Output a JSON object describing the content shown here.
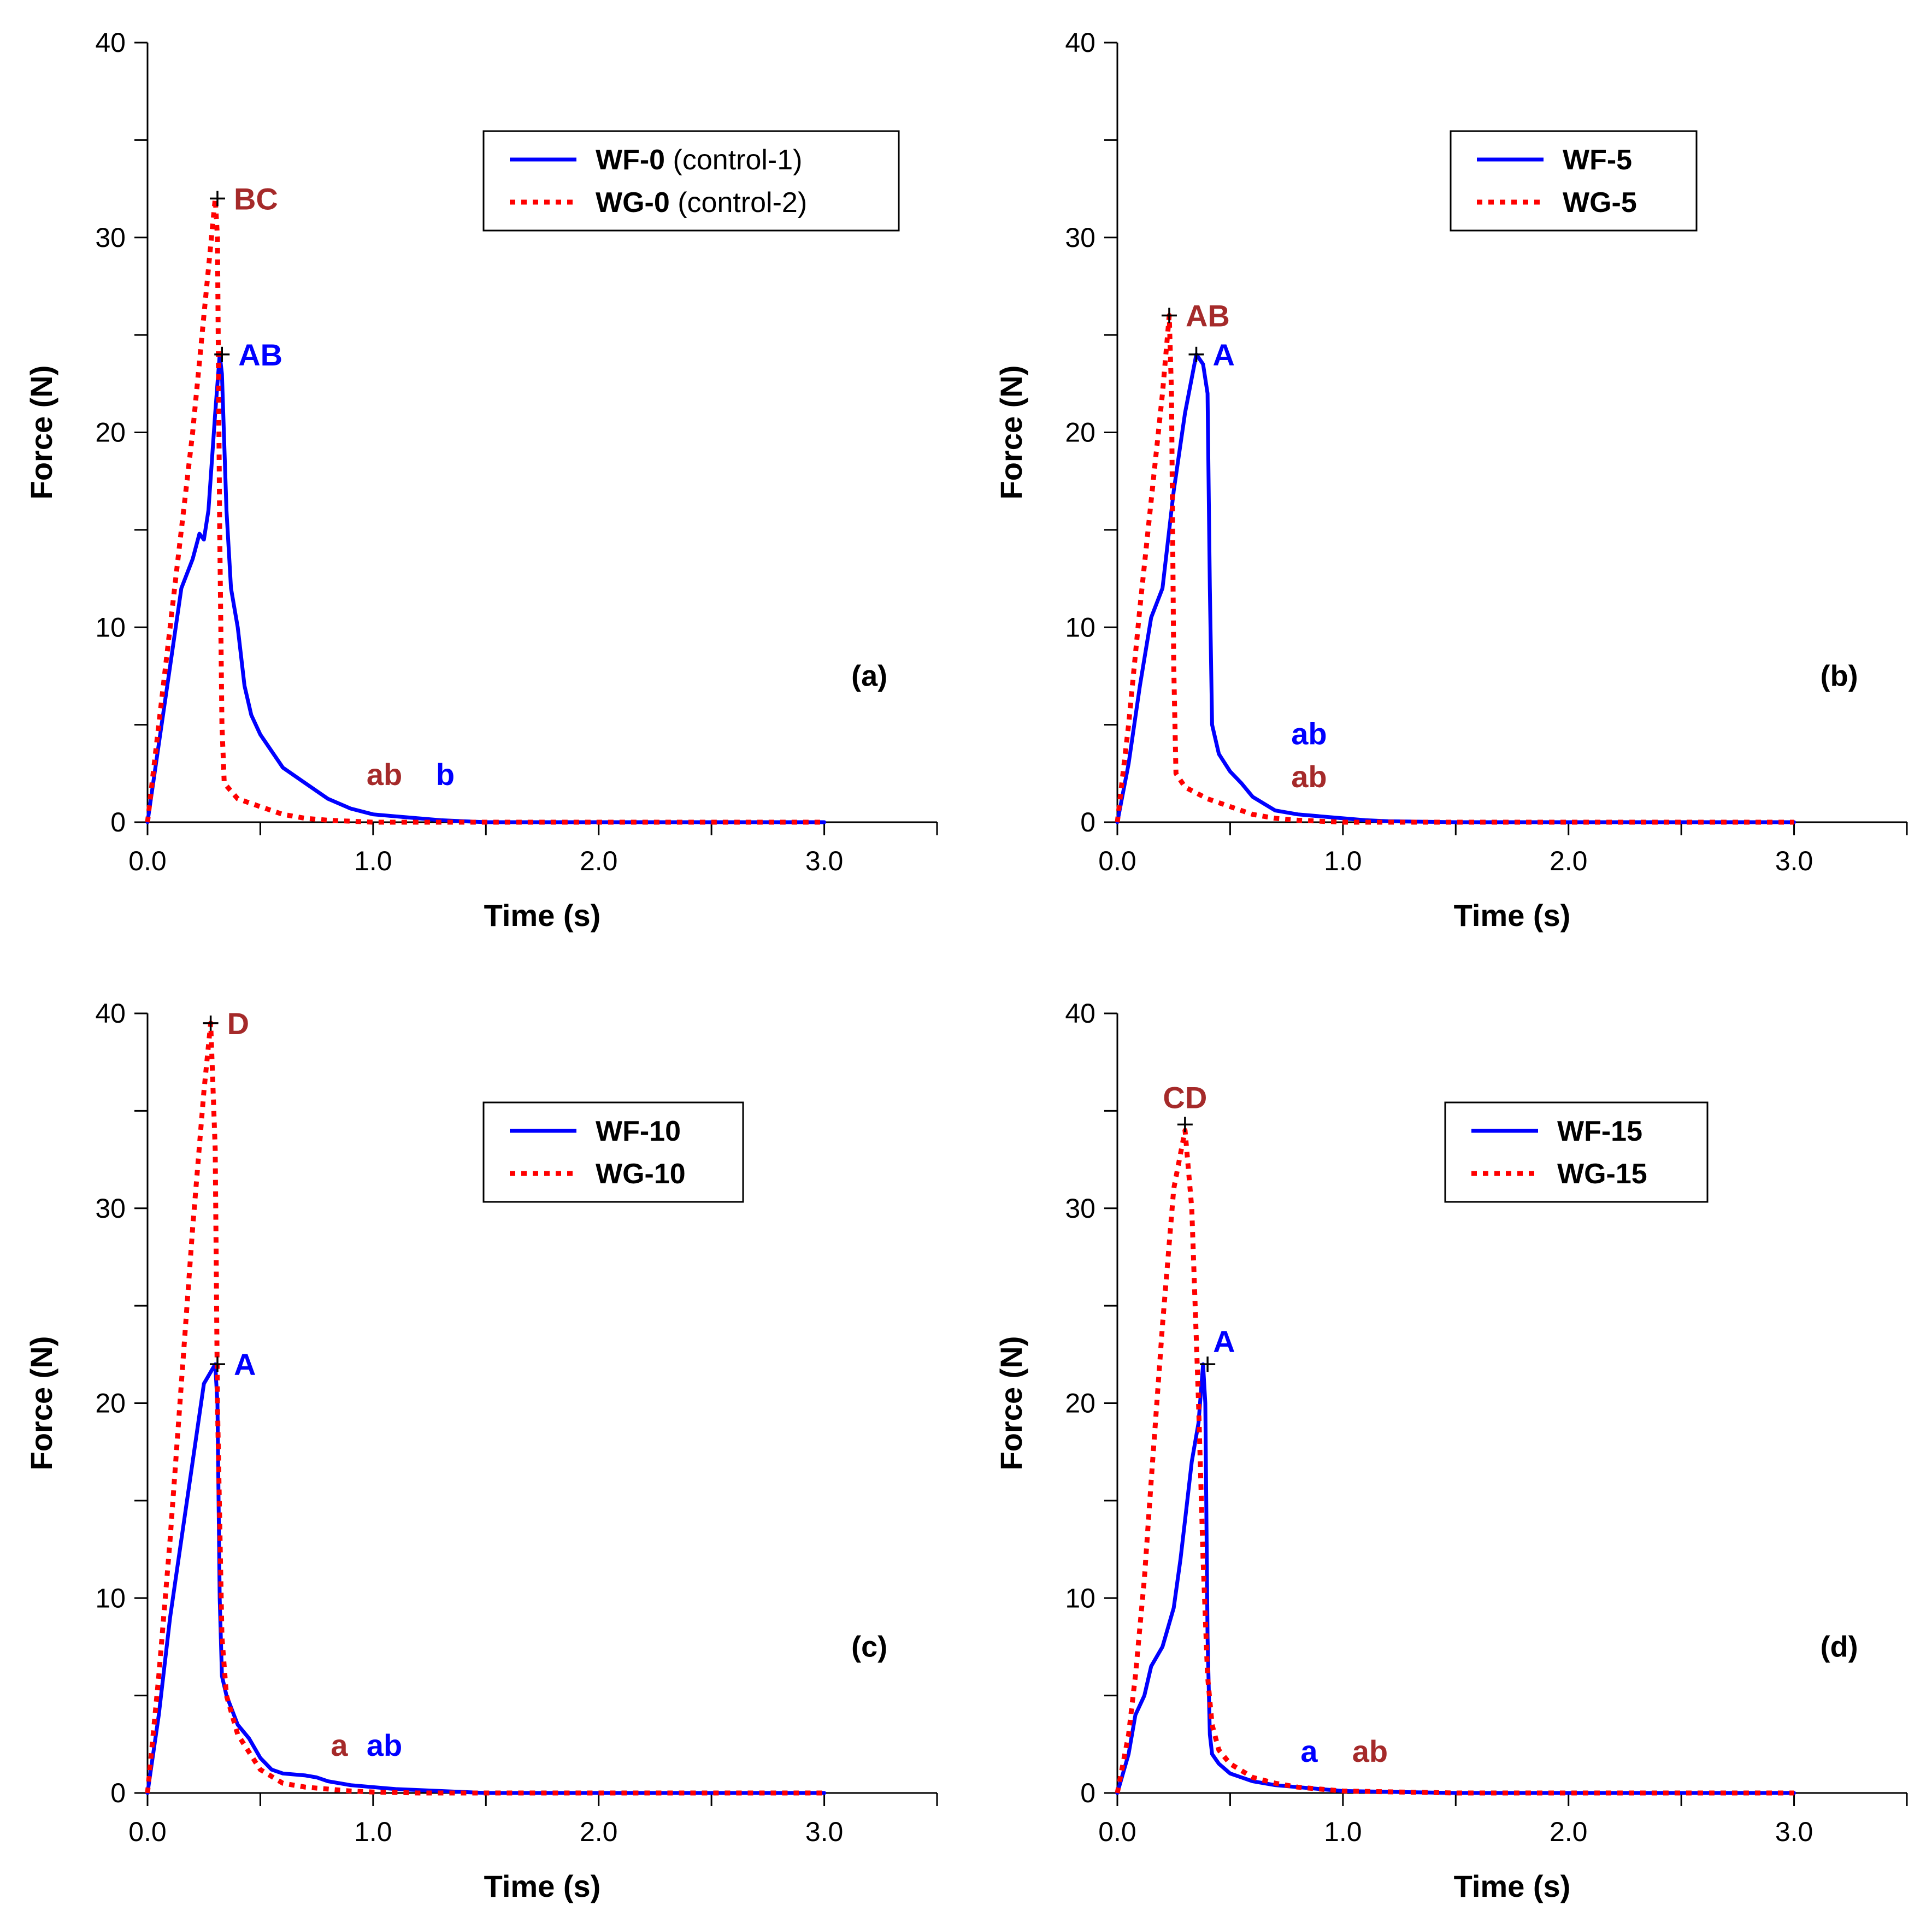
{
  "colors": {
    "wf": "#0000ff",
    "wg": "#ff0000",
    "wg_annot": "#a52a2a",
    "wf_annot": "#0000ff"
  },
  "chart_data": [
    {
      "type": "line",
      "panel_label": "(a)",
      "xlabel": "Time (s)",
      "ylabel": "Force (N)",
      "xlim": [
        0,
        3.5
      ],
      "ylim": [
        0,
        40
      ],
      "xticks": [
        "0.0",
        "1.0",
        "2.0",
        "3.0"
      ],
      "yticks": [
        "0",
        "10",
        "20",
        "30",
        "40"
      ],
      "legend": [
        {
          "bold": "WF-0",
          "rest": " (control-1)",
          "style": "solid"
        },
        {
          "bold": "WG-0",
          "rest": " (control-2)",
          "style": "dotted"
        }
      ],
      "series": [
        {
          "name": "WF-0 (control-1)",
          "style": "solid",
          "x": [
            0,
            0.05,
            0.1,
            0.15,
            0.2,
            0.23,
            0.25,
            0.27,
            0.3,
            0.32,
            0.33,
            0.35,
            0.37,
            0.4,
            0.43,
            0.46,
            0.5,
            0.6,
            0.7,
            0.8,
            0.9,
            1.0,
            1.1,
            1.2,
            1.3,
            1.4,
            1.5,
            2.0,
            2.5,
            3.0
          ],
          "y": [
            0,
            4,
            8,
            12,
            13.5,
            14.8,
            14.5,
            16,
            21,
            24,
            23,
            16,
            12,
            10,
            7,
            5.5,
            4.5,
            2.8,
            2.0,
            1.2,
            0.7,
            0.4,
            0.3,
            0.2,
            0.1,
            0.05,
            0,
            0,
            0,
            0
          ]
        },
        {
          "name": "WG-0 (control-2)",
          "style": "dotted",
          "x": [
            0,
            0.05,
            0.1,
            0.15,
            0.2,
            0.25,
            0.3,
            0.31,
            0.32,
            0.33,
            0.34,
            0.4,
            0.5,
            0.6,
            0.7,
            0.8,
            0.9,
            1.0,
            1.2,
            1.5,
            2.0,
            2.5,
            3.0
          ],
          "y": [
            0,
            5,
            10,
            15,
            20,
            26,
            32,
            30,
            15,
            5,
            2,
            1.2,
            0.8,
            0.4,
            0.2,
            0.1,
            0.05,
            0,
            0,
            0,
            0,
            0,
            0
          ]
        }
      ],
      "peaks": [
        {
          "series": 1,
          "x": 0.31,
          "y": 32,
          "label": "BC"
        },
        {
          "series": 0,
          "x": 0.33,
          "y": 24,
          "label": "AB"
        }
      ],
      "annotations": [
        {
          "series": 1,
          "x": 1.05,
          "y": 1.9,
          "label": "ab"
        },
        {
          "series": 0,
          "x": 1.32,
          "y": 1.9,
          "label": "b"
        }
      ]
    },
    {
      "type": "line",
      "panel_label": "(b)",
      "xlabel": "Time (s)",
      "ylabel": "Force (N)",
      "xlim": [
        0,
        3.5
      ],
      "ylim": [
        0,
        40
      ],
      "xticks": [
        "0.0",
        "1.0",
        "2.0",
        "3.0"
      ],
      "yticks": [
        "0",
        "10",
        "20",
        "30",
        "40"
      ],
      "legend": [
        {
          "bold": "WF-5",
          "rest": "",
          "style": "solid"
        },
        {
          "bold": "WG-5",
          "rest": "",
          "style": "dotted"
        }
      ],
      "series": [
        {
          "name": "WF-5",
          "style": "solid",
          "x": [
            0,
            0.05,
            0.1,
            0.15,
            0.2,
            0.25,
            0.3,
            0.35,
            0.38,
            0.4,
            0.41,
            0.42,
            0.45,
            0.5,
            0.55,
            0.6,
            0.7,
            0.8,
            0.9,
            1.0,
            1.1,
            1.2,
            1.5,
            2.0,
            2.5,
            3.0
          ],
          "y": [
            0,
            3,
            7,
            10.5,
            12,
            17,
            21,
            24,
            23.5,
            22,
            12,
            5,
            3.5,
            2.6,
            2.0,
            1.3,
            0.6,
            0.4,
            0.3,
            0.2,
            0.1,
            0.05,
            0,
            0,
            0,
            0
          ]
        },
        {
          "name": "WG-5",
          "style": "dotted",
          "x": [
            0,
            0.05,
            0.1,
            0.15,
            0.2,
            0.23,
            0.24,
            0.25,
            0.26,
            0.3,
            0.4,
            0.5,
            0.6,
            0.7,
            0.8,
            0.9,
            1.0,
            1.2,
            1.5,
            2.0,
            2.5,
            3.0
          ],
          "y": [
            0,
            5,
            11,
            16.5,
            22,
            26,
            22,
            8,
            2.5,
            1.8,
            1.2,
            0.8,
            0.4,
            0.2,
            0.1,
            0.05,
            0,
            0,
            0,
            0,
            0,
            0
          ]
        }
      ],
      "peaks": [
        {
          "series": 1,
          "x": 0.23,
          "y": 26,
          "label": "AB"
        },
        {
          "series": 0,
          "x": 0.35,
          "y": 24,
          "label": "A"
        }
      ],
      "annotations": [
        {
          "series": 0,
          "x": 0.85,
          "y": 4,
          "label": "ab"
        },
        {
          "series": 1,
          "x": 0.85,
          "y": 1.8,
          "label": "ab"
        }
      ]
    },
    {
      "type": "line",
      "panel_label": "(c)",
      "xlabel": "Time (s)",
      "ylabel": "Force (N)",
      "xlim": [
        0,
        3.5
      ],
      "ylim": [
        0,
        40
      ],
      "xticks": [
        "0.0",
        "1.0",
        "2.0",
        "3.0"
      ],
      "yticks": [
        "0",
        "10",
        "20",
        "30",
        "40"
      ],
      "legend": [
        {
          "bold": "WF-10",
          "rest": "",
          "style": "solid"
        },
        {
          "bold": "WG-10",
          "rest": "",
          "style": "dotted"
        }
      ],
      "series": [
        {
          "name": "WF-10",
          "style": "solid",
          "x": [
            0,
            0.05,
            0.1,
            0.15,
            0.2,
            0.25,
            0.3,
            0.31,
            0.32,
            0.33,
            0.35,
            0.4,
            0.45,
            0.5,
            0.55,
            0.6,
            0.7,
            0.75,
            0.8,
            0.9,
            1.0,
            1.1,
            1.2,
            1.5,
            2.0,
            2.5,
            3.0
          ],
          "y": [
            0,
            4,
            9,
            13,
            17,
            21,
            22,
            20,
            10,
            6,
            5,
            3.5,
            2.8,
            1.8,
            1.2,
            1.0,
            0.9,
            0.8,
            0.6,
            0.4,
            0.3,
            0.2,
            0.15,
            0,
            0,
            0,
            0
          ]
        },
        {
          "name": "WG-10",
          "style": "dotted",
          "x": [
            0,
            0.05,
            0.1,
            0.15,
            0.2,
            0.25,
            0.28,
            0.3,
            0.31,
            0.33,
            0.35,
            0.4,
            0.5,
            0.6,
            0.7,
            0.8,
            0.9,
            1.0,
            1.2,
            1.5,
            2.0,
            2.5,
            3.0
          ],
          "y": [
            0,
            6,
            13,
            21,
            29,
            36,
            39.5,
            33,
            20,
            8,
            5,
            3,
            1.2,
            0.5,
            0.3,
            0.2,
            0.1,
            0.05,
            0,
            0,
            0,
            0,
            0
          ]
        }
      ],
      "peaks": [
        {
          "series": 1,
          "x": 0.28,
          "y": 39.5,
          "label": "D"
        },
        {
          "series": 0,
          "x": 0.31,
          "y": 22,
          "label": "A"
        }
      ],
      "annotations": [
        {
          "series": 1,
          "x": 0.85,
          "y": 1.9,
          "label": "a"
        },
        {
          "series": 0,
          "x": 1.05,
          "y": 1.9,
          "label": "ab"
        }
      ]
    },
    {
      "type": "line",
      "panel_label": "(d)",
      "xlabel": "Time (s)",
      "ylabel": "Force (N)",
      "xlim": [
        0,
        3.5
      ],
      "ylim": [
        0,
        40
      ],
      "xticks": [
        "0.0",
        "1.0",
        "2.0",
        "3.0"
      ],
      "yticks": [
        "0",
        "10",
        "20",
        "30",
        "40"
      ],
      "legend": [
        {
          "bold": "WF-15",
          "rest": "",
          "style": "solid"
        },
        {
          "bold": "WG-15",
          "rest": "",
          "style": "dotted"
        }
      ],
      "series": [
        {
          "name": "WF-15",
          "style": "solid",
          "x": [
            0,
            0.05,
            0.08,
            0.12,
            0.15,
            0.2,
            0.25,
            0.28,
            0.3,
            0.33,
            0.36,
            0.38,
            0.39,
            0.4,
            0.41,
            0.42,
            0.45,
            0.5,
            0.55,
            0.6,
            0.7,
            0.8,
            0.9,
            1.0,
            1.5,
            2.0,
            2.5,
            3.0
          ],
          "y": [
            0,
            2,
            4,
            5,
            6.5,
            7.5,
            9.5,
            12,
            14,
            17,
            19,
            22,
            20,
            8,
            3,
            2,
            1.5,
            1.0,
            0.8,
            0.6,
            0.4,
            0.3,
            0.2,
            0.1,
            0,
            0,
            0,
            0
          ]
        },
        {
          "name": "WG-15",
          "style": "dotted",
          "x": [
            0,
            0.05,
            0.08,
            0.12,
            0.15,
            0.2,
            0.25,
            0.3,
            0.33,
            0.36,
            0.38,
            0.4,
            0.42,
            0.45,
            0.5,
            0.6,
            0.7,
            0.8,
            0.9,
            1.0,
            1.5,
            2.0,
            2.5,
            3.0
          ],
          "y": [
            0,
            3,
            6,
            11,
            16,
            24,
            31,
            34,
            30,
            20,
            12,
            6,
            3.5,
            2.2,
            1.5,
            0.8,
            0.5,
            0.3,
            0.2,
            0.1,
            0,
            0,
            0,
            0
          ]
        }
      ],
      "peaks": [
        {
          "series": 1,
          "x": 0.3,
          "y": 34.3,
          "label": "CD"
        },
        {
          "series": 0,
          "x": 0.4,
          "y": 22,
          "label": "A"
        }
      ],
      "annotations": [
        {
          "series": 0,
          "x": 0.85,
          "y": 1.6,
          "label": "a"
        },
        {
          "series": 1,
          "x": 1.12,
          "y": 1.6,
          "label": "ab"
        }
      ]
    }
  ]
}
